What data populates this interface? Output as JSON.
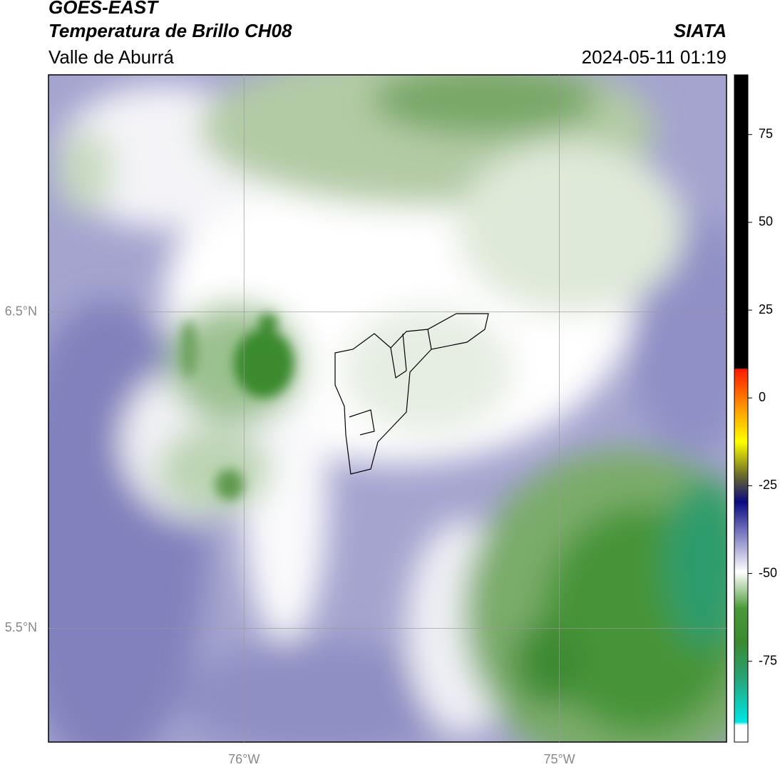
{
  "header": {
    "title": "GOES-EAST",
    "subtitle": "Temperatura de Brillo CH08",
    "region": "Valle de Aburrá",
    "source": "SIATA",
    "timestamp": "2024-05-11 01:19"
  },
  "map": {
    "xlim": [
      -76.62,
      -74.47
    ],
    "ylim": [
      5.14,
      7.25
    ],
    "xticks": [
      {
        "value": -76,
        "label": "76°W"
      },
      {
        "value": -75,
        "label": "75°W"
      }
    ],
    "yticks": [
      {
        "value": 5.5,
        "label": "5.5°N"
      },
      {
        "value": 6.5,
        "label": "6.5°N"
      }
    ]
  },
  "colorbar": {
    "lim": [
      -98,
      92
    ],
    "ticks": [
      75,
      50,
      25,
      0,
      -25,
      -50,
      -75
    ]
  }
}
